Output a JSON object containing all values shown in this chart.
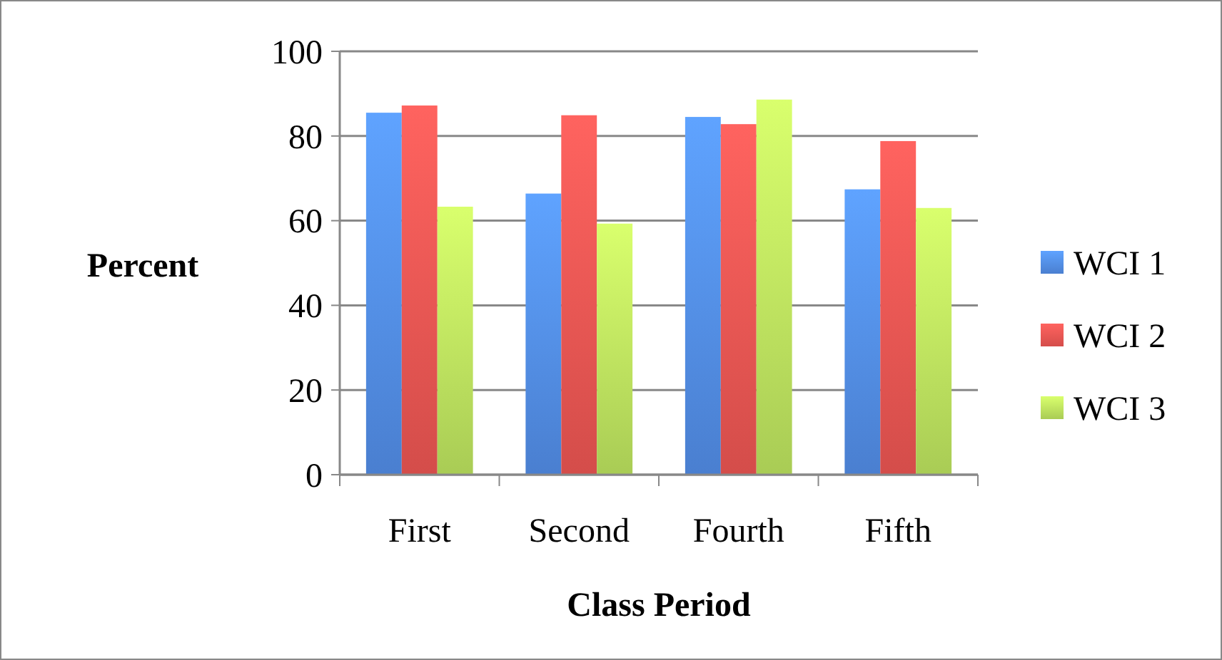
{
  "chart_data": {
    "type": "bar",
    "xlabel": "Class Period",
    "ylabel": "Percent",
    "categories": [
      "First",
      "Second",
      "Fourth",
      "Fifth"
    ],
    "series": [
      {
        "name": "WCI 1",
        "color": "#4a7fd0",
        "values": [
          85.5,
          66.4,
          84.5,
          67.4
        ]
      },
      {
        "name": "WCI 2",
        "color": "#d44d4a",
        "values": [
          87.2,
          84.9,
          82.8,
          78.8
        ]
      },
      {
        "name": "WCI 3",
        "color": "#a9cc55",
        "values": [
          63.3,
          59.3,
          88.6,
          63.0
        ]
      }
    ],
    "ylim": [
      0,
      100
    ],
    "yticks": [
      0,
      20,
      40,
      60,
      80,
      100
    ],
    "grid": "y",
    "legend": "right"
  }
}
